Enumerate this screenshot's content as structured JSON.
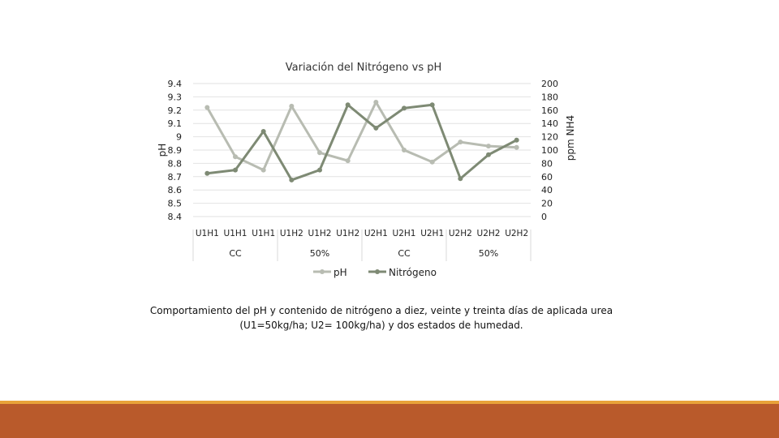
{
  "chart_data": {
    "type": "line",
    "title": "Variación del Nitrógeno vs pH",
    "ylabel_left": "pH",
    "ylabel_right": "ppm NH4",
    "y_left_ticks": [
      "9.4",
      "9.3",
      "9.2",
      "9.1",
      "9",
      "8.9",
      "8.8",
      "8.7",
      "8.6",
      "8.5",
      "8.4"
    ],
    "y_right_ticks": [
      "200",
      "180",
      "160",
      "140",
      "120",
      "100",
      "80",
      "60",
      "40",
      "20",
      "0"
    ],
    "ylim_left": [
      8.4,
      9.4
    ],
    "ylim_right": [
      0,
      200
    ],
    "categories": [
      "U1H1",
      "U1H1",
      "U1H1",
      "U1H2",
      "U1H2",
      "U1H2",
      "U2H1",
      "U2H1",
      "U2H1",
      "U2H2",
      "U2H2",
      "U2H2"
    ],
    "group_labels": [
      "CC",
      "50%",
      "CC",
      "50%"
    ],
    "series": [
      {
        "name": "pH",
        "axis": "left",
        "color": "#b8bcb2",
        "values": [
          9.22,
          8.85,
          8.75,
          9.23,
          8.88,
          8.82,
          9.26,
          8.9,
          8.81,
          8.96,
          8.93,
          8.92
        ]
      },
      {
        "name": "Nitrógeno",
        "axis": "right",
        "color": "#7e8a74",
        "values": [
          65,
          70,
          128,
          55,
          70,
          168,
          133,
          163,
          168,
          57,
          93,
          115
        ]
      }
    ],
    "grid": true,
    "legend_position": "bottom"
  },
  "caption_line1": "Comportamiento del pH y contenido de nitrógeno a diez, veinte y treinta días de aplicada urea",
  "caption_line2": "(U1=50kg/ha; U2= 100kg/ha) y dos estados de humedad."
}
